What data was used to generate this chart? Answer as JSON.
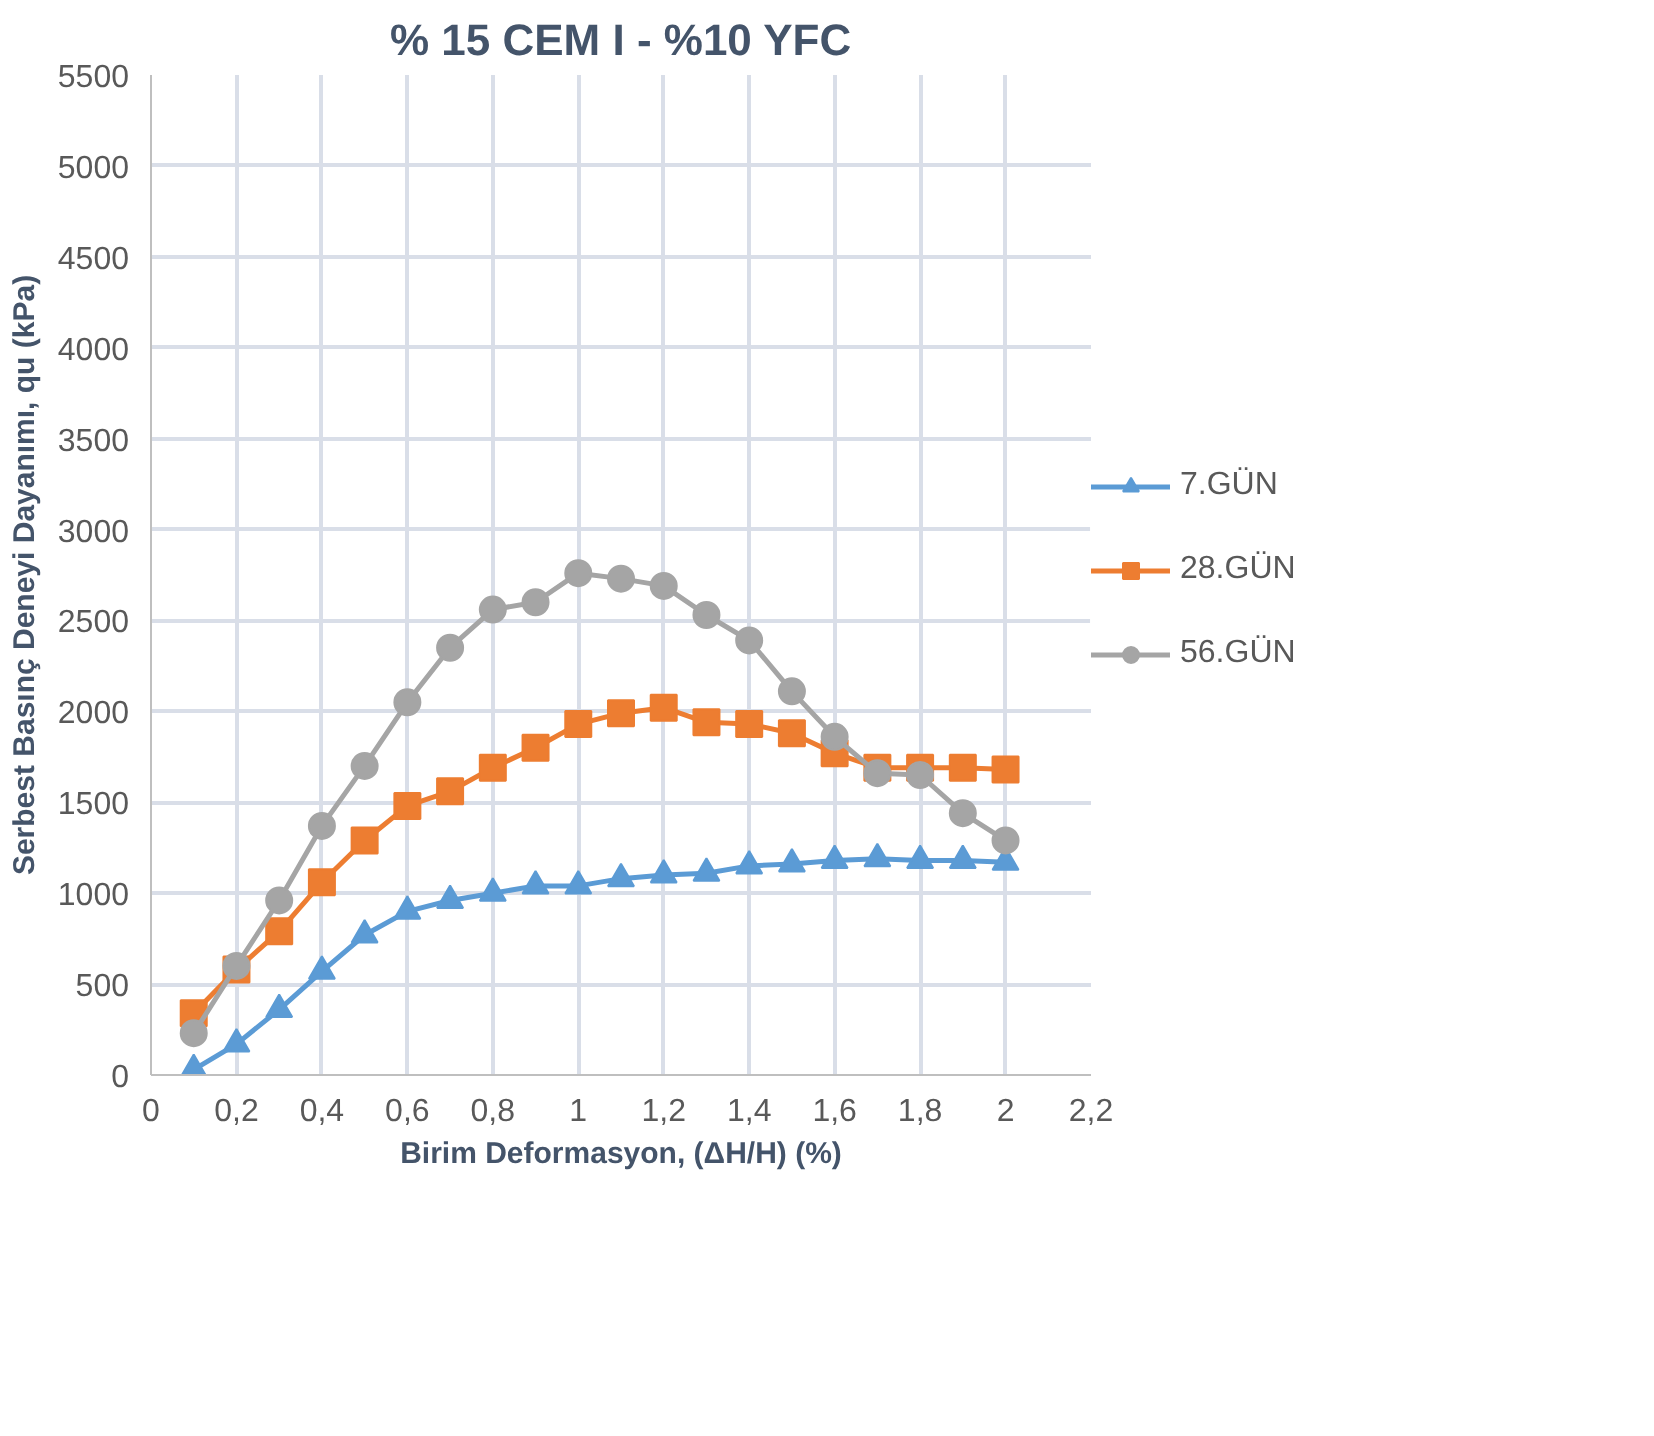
{
  "chart_data": {
    "type": "line",
    "title": "% 15 CEM I - %10 YFC",
    "xlabel": "Birim Deformasyon, (ΔH/H) (%)",
    "ylabel": "Serbest Basınç Deneyi Dayanımı, qu (kPa)",
    "x": [
      0.1,
      0.2,
      0.3,
      0.4,
      0.5,
      0.6,
      0.7,
      0.8,
      0.9,
      1.0,
      1.1,
      1.2,
      1.3,
      1.4,
      1.5,
      1.6,
      1.7,
      1.8,
      1.9,
      2.0
    ],
    "series": [
      {
        "name": "7.GÜN",
        "color": "#5b9bd5",
        "marker": "triangle",
        "values": [
          30,
          170,
          360,
          570,
          770,
          900,
          960,
          1000,
          1040,
          1040,
          1080,
          1100,
          1110,
          1150,
          1160,
          1180,
          1190,
          1180,
          1180,
          1170
        ]
      },
      {
        "name": "28.GÜN",
        "color": "#ed7d31",
        "marker": "square",
        "values": [
          340,
          580,
          790,
          1060,
          1290,
          1480,
          1560,
          1690,
          1800,
          1930,
          1990,
          2020,
          1940,
          1930,
          1880,
          1770,
          1690,
          1690,
          1690,
          1680
        ]
      },
      {
        "name": "56.GÜN",
        "color": "#a5a5a5",
        "marker": "circle",
        "values": [
          230,
          600,
          960,
          1370,
          1700,
          2050,
          2350,
          2560,
          2600,
          2760,
          2730,
          2690,
          2530,
          2390,
          2110,
          1860,
          1660,
          1650,
          1440,
          1290
        ]
      }
    ],
    "xlim": [
      0,
      2.2
    ],
    "xticks": [
      0,
      {
        "value": 0.2,
        "label": "0,2"
      },
      {
        "value": 0.4,
        "label": "0,4"
      },
      {
        "value": 0.6,
        "label": "0,6"
      },
      {
        "value": 0.8,
        "label": "0,8"
      },
      1,
      {
        "value": 1.2,
        "label": "1,2"
      },
      {
        "value": 1.4,
        "label": "1,4"
      },
      {
        "value": 1.6,
        "label": "1,6"
      },
      {
        "value": 1.8,
        "label": "1,8"
      },
      2,
      {
        "value": 2.2,
        "label": "2,2"
      }
    ],
    "ylim": [
      0,
      5500
    ],
    "yticks": [
      0,
      500,
      1000,
      1500,
      2000,
      2500,
      3000,
      3500,
      4000,
      4500,
      5000,
      5500
    ],
    "grid": true,
    "legend": "right"
  }
}
